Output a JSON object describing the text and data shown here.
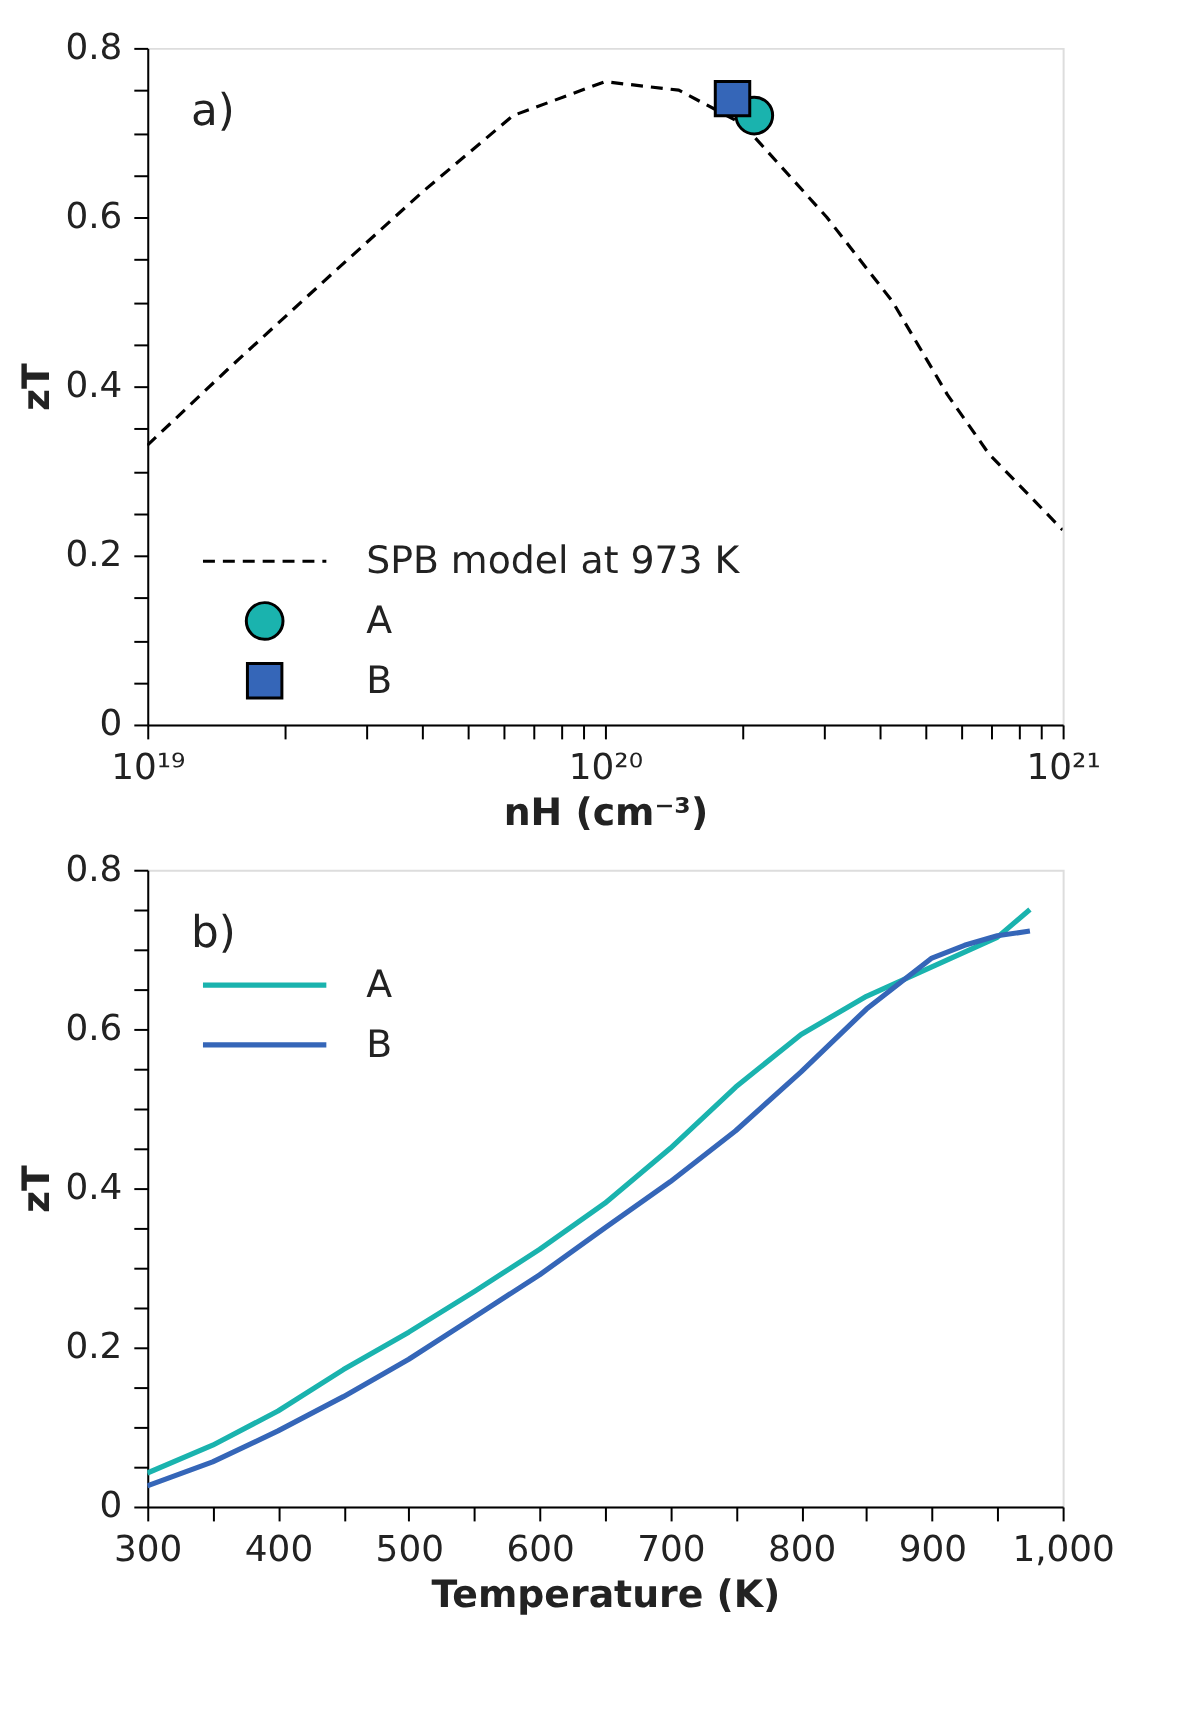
{
  "chart_data": [
    {
      "type": "line",
      "xlabel": "nH (cm⁻³)",
      "ylabel": "zT",
      "annotations": [
        "a)"
      ],
      "log": "x",
      "legend": "bottom left",
      "grid": false,
      "xlim": [
        1e+19,
        1e+21
      ],
      "ylim": [
        0,
        0.8
      ],
      "xticks": [
        {
          "value": 1e+19,
          "label": "10¹⁹"
        },
        {
          "value": 2e+19,
          "label": null
        },
        {
          "value": 3e+19,
          "label": null
        },
        {
          "value": 4e+19,
          "label": null
        },
        {
          "value": 5e+19,
          "label": null
        },
        {
          "value": 6e+19,
          "label": null
        },
        {
          "value": 7e+19,
          "label": null
        },
        {
          "value": 8e+19,
          "label": null
        },
        {
          "value": 9e+19,
          "label": null
        },
        {
          "value": 1e+20,
          "label": "10²⁰"
        },
        {
          "value": 2e+20,
          "label": null
        },
        {
          "value": 3e+20,
          "label": null
        },
        {
          "value": 4e+20,
          "label": null
        },
        {
          "value": 5e+20,
          "label": null
        },
        {
          "value": 6e+20,
          "label": null
        },
        {
          "value": 7e+20,
          "label": null
        },
        {
          "value": 8e+20,
          "label": null
        },
        {
          "value": 9e+20,
          "label": null
        },
        {
          "value": 1e+21,
          "label": "10²¹"
        }
      ],
      "yticks": [
        0,
        {
          "value": 0.05,
          "label": null
        },
        {
          "value": 0.1,
          "label": null
        },
        {
          "value": 0.15,
          "label": null
        },
        0.2,
        {
          "value": 0.25,
          "label": null
        },
        {
          "value": 0.3,
          "label": null
        },
        {
          "value": 0.35,
          "label": null
        },
        0.4,
        {
          "value": 0.45,
          "label": null
        },
        {
          "value": 0.5,
          "label": null
        },
        {
          "value": 0.55,
          "label": null
        },
        0.6,
        {
          "value": 0.65,
          "label": null
        },
        {
          "value": 0.7,
          "label": null
        },
        {
          "value": 0.75,
          "label": null
        },
        0.8
      ],
      "series": [
        {
          "name": "SPB model at 973 K",
          "color": "#000000",
          "line_style": "dashed",
          "marker": "none",
          "x": [
            1e+19,
            1.5e+19,
            2.5e+19,
            4e+19,
            6.3e+19,
            1e+20,
            1.45e+20,
            2e+20,
            3.05e+20,
            4.25e+20,
            5.6e+20,
            6.9e+20,
            1e+21
          ],
          "values": [
            0.33,
            0.42,
            0.53,
            0.63,
            0.72,
            0.76,
            0.75,
            0.71,
            0.6,
            0.5,
            0.39,
            0.32,
            0.23
          ]
        },
        {
          "name": "A",
          "type": "scatter",
          "color": "#1ab3ae",
          "marker": "circle",
          "x": [
            2.12e+20
          ],
          "values": [
            0.72
          ]
        },
        {
          "name": "B",
          "type": "scatter",
          "color": "#3566b8",
          "marker": "square",
          "x": [
            1.9e+20
          ],
          "values": [
            0.74
          ]
        }
      ]
    },
    {
      "type": "line",
      "xlabel": "Temperature (K)",
      "ylabel": "zT",
      "annotations": [
        "b)"
      ],
      "legend": "top left",
      "grid": false,
      "xlim": [
        300,
        1000
      ],
      "ylim": [
        0,
        0.8
      ],
      "xticks": [
        300,
        {
          "value": 350,
          "label": null
        },
        400,
        {
          "value": 450,
          "label": null
        },
        500,
        {
          "value": 550,
          "label": null
        },
        600,
        {
          "value": 650,
          "label": null
        },
        700,
        {
          "value": 750,
          "label": null
        },
        800,
        {
          "value": 850,
          "label": null
        },
        900,
        {
          "value": 950,
          "label": null
        },
        {
          "value": 1000,
          "label": "1,000"
        }
      ],
      "yticks": [
        0,
        {
          "value": 0.05,
          "label": null
        },
        {
          "value": 0.1,
          "label": null
        },
        {
          "value": 0.15,
          "label": null
        },
        0.2,
        {
          "value": 0.25,
          "label": null
        },
        {
          "value": 0.3,
          "label": null
        },
        {
          "value": 0.35,
          "label": null
        },
        0.4,
        {
          "value": 0.45,
          "label": null
        },
        {
          "value": 0.5,
          "label": null
        },
        {
          "value": 0.55,
          "label": null
        },
        0.6,
        {
          "value": 0.65,
          "label": null
        },
        {
          "value": 0.7,
          "label": null
        },
        {
          "value": 0.75,
          "label": null
        },
        0.8
      ],
      "series": [
        {
          "name": "A",
          "color": "#1ab3ae",
          "line_style": "solid",
          "marker": "none",
          "x": [
            300,
            350,
            400,
            450,
            500,
            550,
            600,
            650,
            700,
            750,
            800,
            850,
            900,
            950,
            975
          ],
          "values": [
            0.042,
            0.077,
            0.12,
            0.172,
            0.219,
            0.27,
            0.323,
            0.381,
            0.45,
            0.527,
            0.593,
            0.641,
            0.678,
            0.715,
            0.75
          ]
        },
        {
          "name": "B",
          "color": "#3566b8",
          "line_style": "solid",
          "marker": "none",
          "x": [
            300,
            350,
            400,
            450,
            500,
            550,
            600,
            650,
            700,
            750,
            800,
            850,
            900,
            925,
            950,
            975
          ],
          "values": [
            0.026,
            0.056,
            0.095,
            0.138,
            0.185,
            0.238,
            0.291,
            0.35,
            0.408,
            0.472,
            0.546,
            0.625,
            0.689,
            0.705,
            0.717,
            0.723
          ]
        }
      ]
    }
  ]
}
